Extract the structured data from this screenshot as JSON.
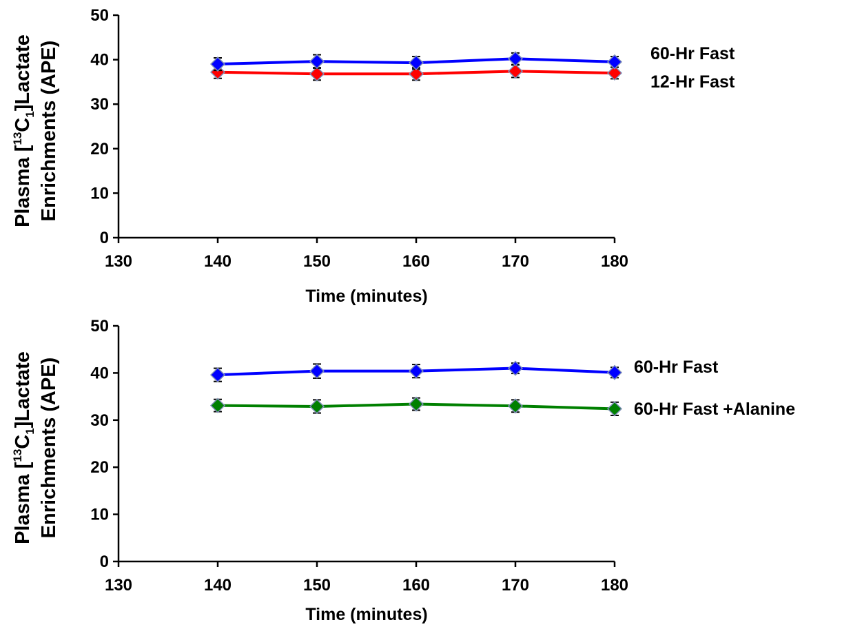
{
  "chart_data": [
    {
      "type": "line",
      "xlabel": "Time (minutes)",
      "ylabel_line1_parts": [
        "Plasma [",
        "13",
        "C",
        "1",
        "]Lactate"
      ],
      "ylabel_line2": "Enrichments (APE)",
      "xlim": [
        130,
        180
      ],
      "ylim": [
        0,
        50
      ],
      "x_ticks": [
        130,
        140,
        150,
        160,
        170,
        180
      ],
      "y_ticks": [
        0,
        10,
        20,
        30,
        40,
        50
      ],
      "grid": false,
      "legend_position": "right",
      "x": [
        140,
        150,
        160,
        170,
        180
      ],
      "series": [
        {
          "name": "60-Hr Fast",
          "color": "#0000ff",
          "values": [
            39.0,
            39.6,
            39.3,
            40.2,
            39.5
          ],
          "errors": [
            1.4,
            1.5,
            1.4,
            1.3,
            1.2
          ]
        },
        {
          "name": "12-Hr Fast",
          "color": "#ff0000",
          "values": [
            37.2,
            36.8,
            36.8,
            37.4,
            37.0
          ],
          "errors": [
            1.4,
            1.4,
            1.4,
            1.4,
            1.3
          ]
        }
      ]
    },
    {
      "type": "line",
      "xlabel": "Time (minutes)",
      "ylabel_line1_parts": [
        "Plasma [",
        "13",
        "C",
        "1",
        "]Lactate"
      ],
      "ylabel_line2": "Enrichments (APE)",
      "xlim": [
        130,
        180
      ],
      "ylim": [
        0,
        50
      ],
      "x_ticks": [
        130,
        140,
        150,
        160,
        170,
        180
      ],
      "y_ticks": [
        0,
        10,
        20,
        30,
        40,
        50
      ],
      "grid": false,
      "legend_position": "right",
      "x": [
        140,
        150,
        160,
        170,
        180
      ],
      "series": [
        {
          "name": "60-Hr Fast",
          "color": "#0000ff",
          "values": [
            39.6,
            40.4,
            40.4,
            41.0,
            40.1
          ],
          "errors": [
            1.4,
            1.5,
            1.4,
            1.1,
            1.1
          ]
        },
        {
          "name": "60-Hr Fast +Alanine",
          "color": "#008000",
          "values": [
            33.1,
            32.9,
            33.4,
            33.0,
            32.4
          ],
          "errors": [
            1.3,
            1.4,
            1.3,
            1.3,
            1.4
          ]
        }
      ]
    }
  ]
}
